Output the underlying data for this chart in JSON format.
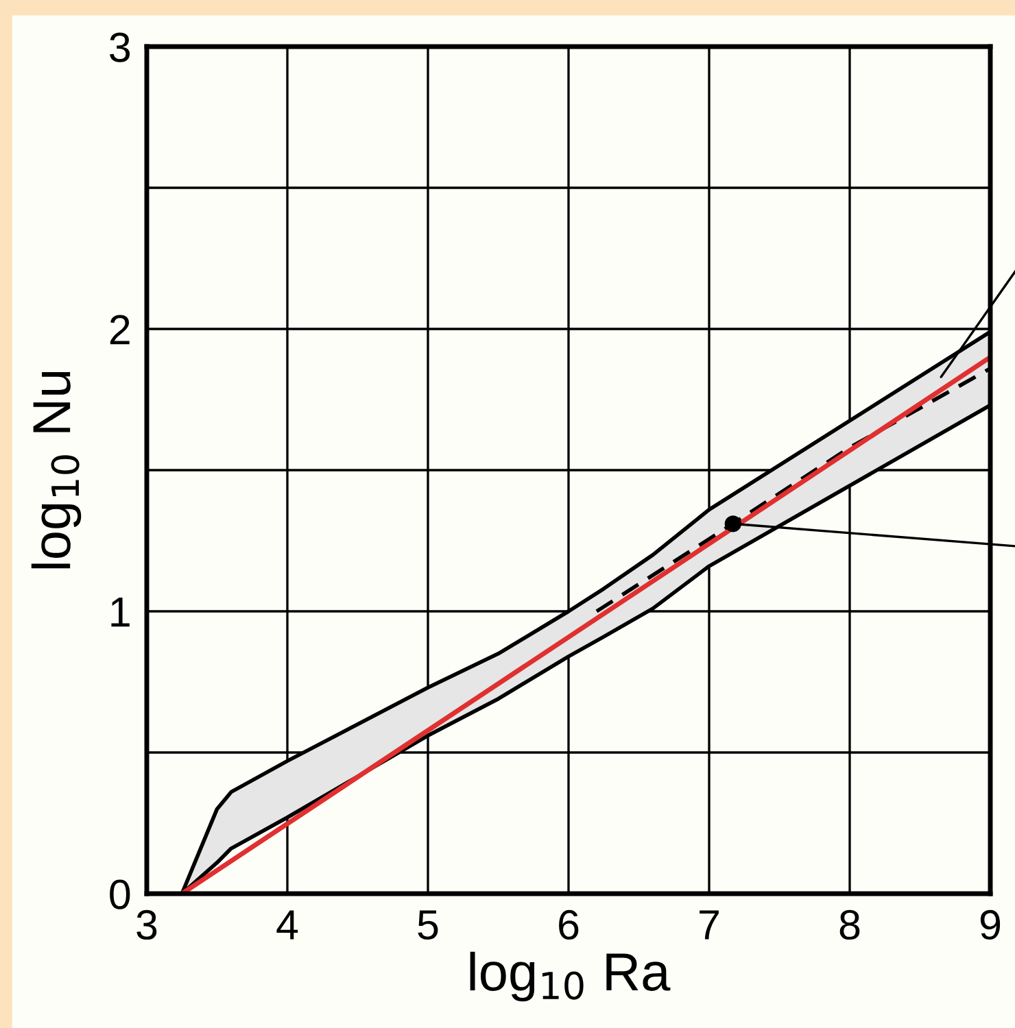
{
  "chart_data": {
    "type": "line",
    "xlabel": "log$_{10}$ Ra",
    "ylabel": "log$_{10}$ Nu",
    "xlim": [
      3,
      9
    ],
    "ylim": [
      0,
      3
    ],
    "xticks": [
      3,
      4,
      5,
      6,
      7,
      8,
      9
    ],
    "yticks": [
      0,
      {
        "value": 0.5,
        "label": null
      },
      1,
      {
        "value": 1.5,
        "label": null
      },
      2,
      {
        "value": 2.5,
        "label": null
      },
      3
    ],
    "grid": true,
    "series": [
      {
        "type": "line",
        "color": "#000000",
        "line_style": "solid",
        "x": [
          3.25,
          3.5,
          3.6,
          4,
          5,
          5.5,
          6,
          6.25,
          6.6,
          7,
          9
        ],
        "values": [
          0,
          0.3,
          0.36,
          0.47,
          0.73,
          0.85,
          1.0,
          1.08,
          1.2,
          1.36,
          1.99
        ]
      },
      {
        "type": "line",
        "color": "#000000",
        "line_style": "solid",
        "x": [
          3.25,
          3.5,
          3.6,
          4,
          5,
          5.5,
          6,
          6.25,
          6.6,
          7,
          9
        ],
        "values": [
          0,
          0.11,
          0.16,
          0.27,
          0.56,
          0.69,
          0.84,
          0.91,
          1.01,
          1.16,
          1.73
        ]
      },
      {
        "type": "line",
        "color": "#000000",
        "line_style": "dashed",
        "x": [
          6.2,
          7.2,
          8,
          9
        ],
        "values": [
          1.0,
          1.32,
          1.58,
          1.86
        ]
      },
      {
        "type": "line",
        "color": "#e03030",
        "line_style": "solid",
        "x": [
          3.25,
          9
        ],
        "values": [
          0,
          1.9
        ]
      },
      {
        "type": "scatter",
        "color": "#000000",
        "marker": "circle",
        "x": [
          7.17
        ],
        "values": [
          1.31
        ]
      }
    ]
  }
}
